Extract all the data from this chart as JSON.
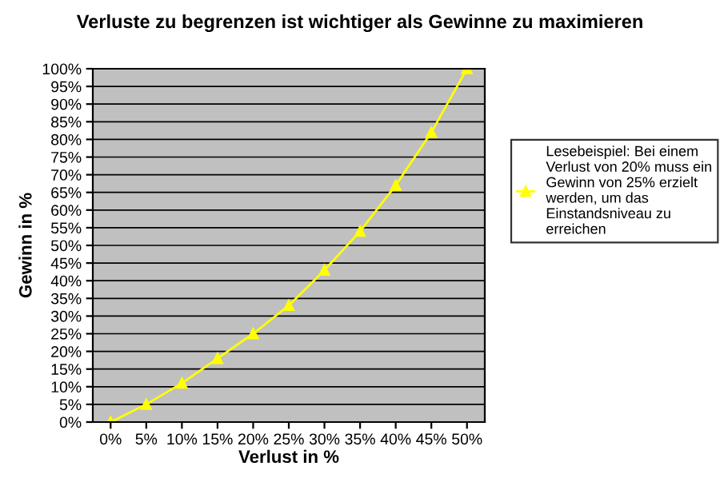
{
  "chart_data": {
    "type": "line",
    "title": "Verluste zu begrenzen ist wichtiger als Gewinne zu maximieren",
    "xlabel": "Verlust in %",
    "ylabel": "Gewinn in %",
    "categories": [
      "0%",
      "5%",
      "10%",
      "15%",
      "20%",
      "25%",
      "30%",
      "35%",
      "40%",
      "45%",
      "50%"
    ],
    "series": [
      {
        "name": "Lesebeispiel: Bei einem Verlust von 20% muss ein Gewinn von 25% erzielt werden, um das Einstandsniveau zu erreichen",
        "color": "#ffff00",
        "values": [
          0,
          5,
          11,
          18,
          25,
          33,
          43,
          54,
          67,
          82,
          100
        ]
      }
    ],
    "ylim": [
      0,
      100
    ],
    "yticks": [
      {
        "value": 0,
        "label": "0%"
      },
      {
        "value": 5,
        "label": "5%"
      },
      {
        "value": 10,
        "label": "10%"
      },
      {
        "value": 15,
        "label": "15%"
      },
      {
        "value": 20,
        "label": "20%"
      },
      {
        "value": 25,
        "label": "25%"
      },
      {
        "value": 30,
        "label": "30%"
      },
      {
        "value": 35,
        "label": "35%"
      },
      {
        "value": 40,
        "label": "40%"
      },
      {
        "value": 45,
        "label": "45%"
      },
      {
        "value": 50,
        "label": "50%"
      },
      {
        "value": 55,
        "label": "55%"
      },
      {
        "value": 60,
        "label": "60%"
      },
      {
        "value": 65,
        "label": "65%"
      },
      {
        "value": 70,
        "label": "70%"
      },
      {
        "value": 75,
        "label": "75%"
      },
      {
        "value": 80,
        "label": "80%"
      },
      {
        "value": 85,
        "label": "85%"
      },
      {
        "value": 90,
        "label": "90%"
      },
      {
        "value": 95,
        "label": "95%"
      },
      {
        "value": 100,
        "label": "100%"
      }
    ],
    "grid": "y",
    "legend": "right",
    "marker": "triangle",
    "line_style": "solid"
  }
}
